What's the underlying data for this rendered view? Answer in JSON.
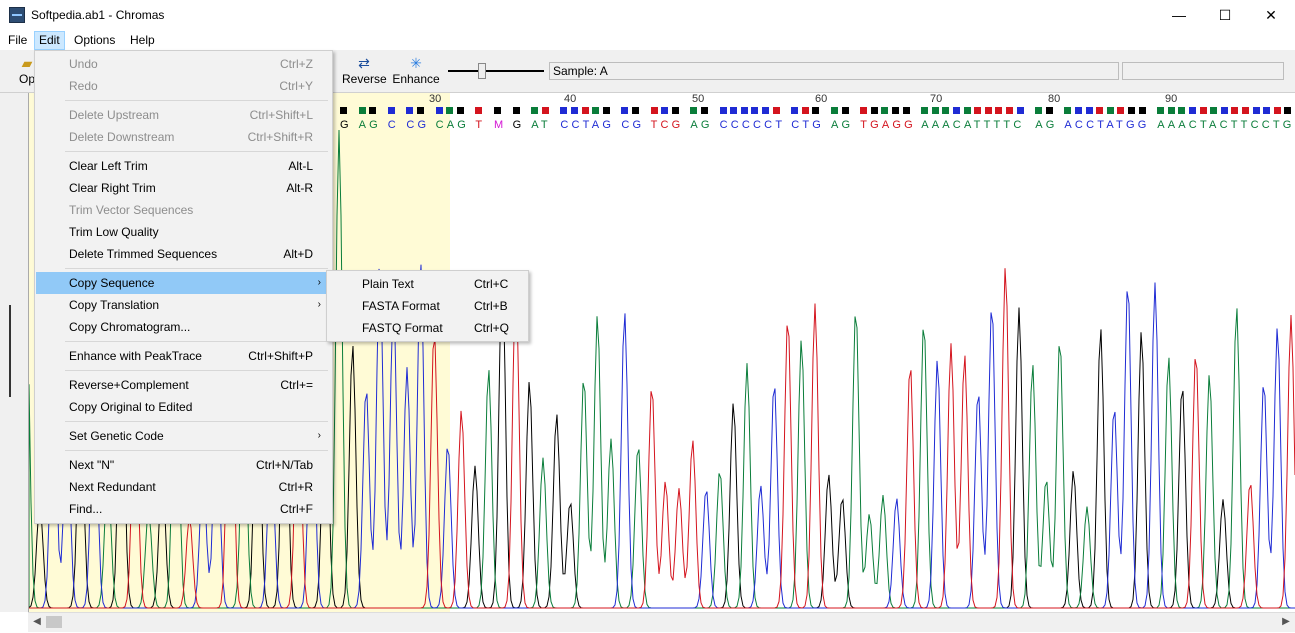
{
  "window": {
    "title": "Softpedia.ab1 - Chromas",
    "minimize": "—",
    "maximize": "☐",
    "close": "✕"
  },
  "menubar": [
    "File",
    "Edit",
    "Options",
    "Help"
  ],
  "toolbar": {
    "open_partial": "Op",
    "reverse": "Reverse",
    "enhance": "Enhance",
    "sample": "Sample: A"
  },
  "ruler": [
    "30",
    "40",
    "50",
    "60",
    "70",
    "80",
    "90"
  ],
  "bases": [
    {
      "b": "G",
      "c": "#000000"
    },
    {
      "b": "AG",
      "c": "#0a7d3a"
    },
    {
      "b": "C",
      "c": "#1f2bd4"
    },
    {
      "b": "CG",
      "c": "#1f2bd4"
    },
    {
      "b": "CAG",
      "c": "#0a7d3a"
    },
    {
      "b": "T",
      "c": "#d4141e"
    },
    {
      "b": "M",
      "c": "#d414d4"
    },
    {
      "b": "G",
      "c": "#000000"
    },
    {
      "b": "AT",
      "c": "#0a7d3a"
    },
    {
      "b": "CCTAG",
      "c": "#1f2bd4"
    },
    {
      "b": "CG",
      "c": "#1f2bd4"
    },
    {
      "b": "TCG",
      "c": "#d4141e"
    },
    {
      "b": "AG",
      "c": "#0a7d3a"
    },
    {
      "b": "CCCCCT",
      "c": "#1f2bd4"
    },
    {
      "b": "CTG",
      "c": "#1f2bd4"
    },
    {
      "b": "AG",
      "c": "#0a7d3a"
    },
    {
      "b": "TGAGG",
      "c": "#d4141e"
    },
    {
      "b": "AAACATTTTC",
      "c": "#0a7d3a"
    },
    {
      "b": "AG",
      "c": "#0a7d3a"
    },
    {
      "b": "ACCTATGG",
      "c": "#1f2bd4"
    },
    {
      "b": "AAACTACTTCCTG",
      "c": "#0a7d3a"
    },
    {
      "b": "AAA",
      "c": "#0a7d3a"
    }
  ],
  "edit_menu": [
    {
      "label": "Undo",
      "shortcut": "Ctrl+Z",
      "disabled": true
    },
    {
      "label": "Redo",
      "shortcut": "Ctrl+Y",
      "disabled": true
    },
    {
      "sep": true
    },
    {
      "label": "Delete Upstream",
      "shortcut": "Ctrl+Shift+L",
      "disabled": true
    },
    {
      "label": "Delete Downstream",
      "shortcut": "Ctrl+Shift+R",
      "disabled": true
    },
    {
      "sep": true
    },
    {
      "label": "Clear Left Trim",
      "shortcut": "Alt-L"
    },
    {
      "label": "Clear Right Trim",
      "shortcut": "Alt-R"
    },
    {
      "label": "Trim Vector Sequences",
      "shortcut": "",
      "disabled": true
    },
    {
      "label": "Trim Low Quality",
      "shortcut": ""
    },
    {
      "label": "Delete Trimmed Sequences",
      "shortcut": "Alt+D"
    },
    {
      "sep": true
    },
    {
      "label": "Copy Sequence",
      "shortcut": "",
      "submenu": true,
      "highlight": true
    },
    {
      "label": "Copy Translation",
      "shortcut": "",
      "submenu": true
    },
    {
      "label": "Copy Chromatogram...",
      "shortcut": ""
    },
    {
      "sep": true
    },
    {
      "label": "Enhance with PeakTrace",
      "shortcut": "Ctrl+Shift+P"
    },
    {
      "sep": true
    },
    {
      "label": "Reverse+Complement",
      "shortcut": "Ctrl+="
    },
    {
      "label": "Copy Original to Edited",
      "shortcut": ""
    },
    {
      "sep": true
    },
    {
      "label": "Set Genetic Code",
      "shortcut": "",
      "submenu": true
    },
    {
      "sep": true
    },
    {
      "label": "Next \"N\"",
      "shortcut": "Ctrl+N/Tab"
    },
    {
      "label": "Next Redundant",
      "shortcut": "Ctrl+R"
    },
    {
      "label": "Find...",
      "shortcut": "Ctrl+F"
    }
  ],
  "copy_sequence_submenu": [
    {
      "label": "Plain Text",
      "shortcut": "Ctrl+C"
    },
    {
      "label": "FASTA Format",
      "shortcut": "Ctrl+B"
    },
    {
      "label": "FASTQ Format",
      "shortcut": "Ctrl+Q"
    }
  ],
  "colors": {
    "A": "#0a7d3a",
    "C": "#1f2bd4",
    "G": "#000000",
    "T": "#d4141e",
    "trim": "#fffbd6",
    "menu_highlight": "#91c9f7"
  }
}
